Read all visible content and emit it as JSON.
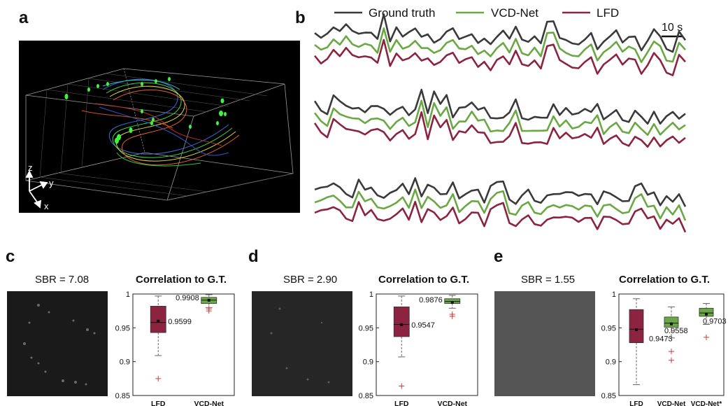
{
  "panel_labels": {
    "a": "a",
    "b": "b",
    "c": "c",
    "d": "d",
    "e": "e"
  },
  "panel_a": {
    "axes": {
      "z": "z",
      "y": "y",
      "x": "x"
    }
  },
  "panel_b": {
    "legend": [
      {
        "name": "Ground truth",
        "color": "#3a3a3a"
      },
      {
        "name": "VCD-Net",
        "color": "#6aa843"
      },
      {
        "name": "LFD",
        "color": "#8c2340"
      }
    ],
    "scale_bar": "10 s"
  },
  "panel_c": {
    "sbr": "SBR = 7.08",
    "title": "Correlation to G.T."
  },
  "panel_d": {
    "sbr": "SBR = 2.90",
    "title": "Correlation to G.T."
  },
  "panel_e": {
    "sbr": "SBR = 1.55",
    "title": "Correlation to G.T."
  },
  "chart_data": [
    {
      "type": "box",
      "title": "Correlation to G.T.",
      "ylim": [
        0.85,
        1.0
      ],
      "yticks": [
        "1",
        "0.95",
        "0.9",
        "0.85"
      ],
      "categories": [
        "LFD",
        "VCD-Net"
      ],
      "boxes": [
        {
          "category": "LFD",
          "color": "#8c2340",
          "median": 0.958,
          "mean": 0.9599,
          "q1": 0.943,
          "q3": 0.982,
          "whisker_low": 0.909,
          "whisker_high": 0.997,
          "outliers": [
            0.875
          ],
          "label": "0.9599"
        },
        {
          "category": "VCD-Net",
          "color": "#6aa843",
          "median": 0.991,
          "mean": 0.9908,
          "q1": 0.986,
          "q3": 0.995,
          "whisker_low": 0.98,
          "whisker_high": 0.999,
          "outliers": [
            0.975,
            0.978
          ],
          "label": "0.9908"
        }
      ]
    },
    {
      "type": "box",
      "title": "Correlation to G.T.",
      "ylim": [
        0.85,
        1.0
      ],
      "yticks": [
        "1",
        "0.95",
        "0.9",
        "0.85"
      ],
      "categories": [
        "LFD",
        "VCD-Net"
      ],
      "boxes": [
        {
          "category": "LFD",
          "color": "#8c2340",
          "median": 0.955,
          "mean": 0.9547,
          "q1": 0.937,
          "q3": 0.981,
          "whisker_low": 0.907,
          "whisker_high": 0.997,
          "outliers": [
            0.864
          ],
          "label": "0.9547"
        },
        {
          "category": "VCD-Net",
          "color": "#6aa843",
          "median": 0.989,
          "mean": 0.9876,
          "q1": 0.986,
          "q3": 0.993,
          "whisker_low": 0.979,
          "whisker_high": 0.998,
          "outliers": [
            0.967,
            0.97
          ],
          "label": "0.9876"
        }
      ]
    },
    {
      "type": "box",
      "title": "Correlation to G.T.",
      "ylim": [
        0.85,
        1.0
      ],
      "yticks": [
        "1",
        "0.95",
        "0.9",
        "0.85"
      ],
      "categories": [
        "LFD",
        "VCD-Net",
        "VCD-Net*"
      ],
      "boxes": [
        {
          "category": "LFD",
          "color": "#8c2340",
          "median": 0.948,
          "mean": 0.9473,
          "q1": 0.928,
          "q3": 0.977,
          "whisker_low": 0.866,
          "whisker_high": 0.993,
          "outliers": [],
          "label": "0.9473"
        },
        {
          "category": "VCD-Net",
          "color": "#6aa843",
          "median": 0.957,
          "mean": 0.9558,
          "q1": 0.951,
          "q3": 0.966,
          "whisker_low": 0.935,
          "whisker_high": 0.981,
          "outliers": [
            0.902,
            0.915
          ],
          "label": "0.9558"
        },
        {
          "category": "VCD-Net*",
          "color": "#6aa843",
          "median": 0.972,
          "mean": 0.9703,
          "q1": 0.967,
          "q3": 0.979,
          "whisker_low": 0.955,
          "whisker_high": 0.986,
          "outliers": [
            0.936
          ],
          "label": "0.9703"
        }
      ]
    }
  ]
}
